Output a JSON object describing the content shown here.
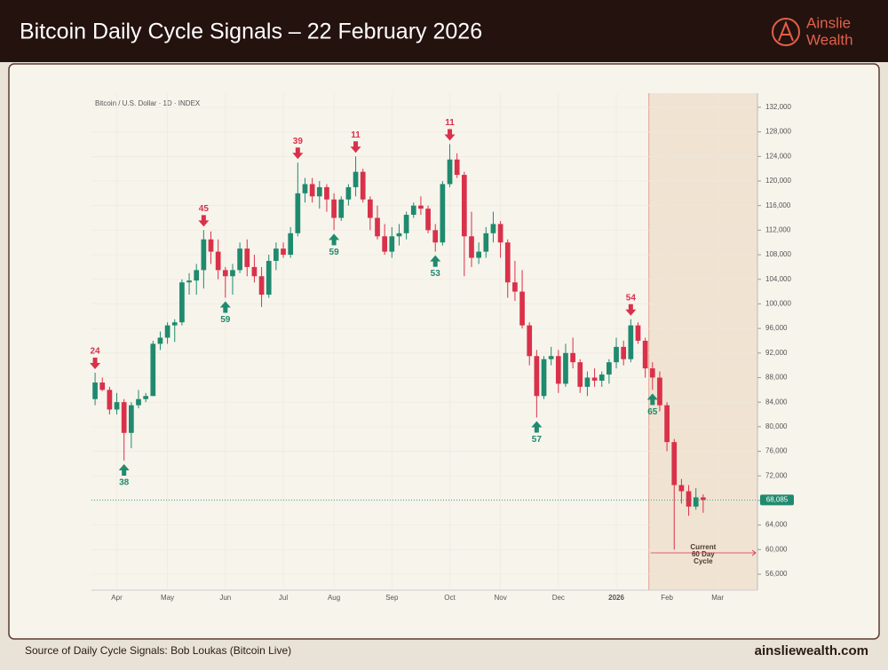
{
  "header": {
    "title": "Bitcoin Daily Cycle Signals – 22 February 2026",
    "logo": [
      "Ainslie",
      "Wealth"
    ]
  },
  "footer": {
    "source": "Source of Daily Cycle Signals: Bob Loukas (Bitcoin Live)",
    "website": "ainsliewealth.com"
  },
  "chart_data": {
    "type": "candlestick",
    "subtitle": "Bitcoin / U.S. Dollar · 1D · INDEX",
    "up_color": "#1f8a6e",
    "down_color": "#d9314a",
    "grid": true,
    "xlim": [
      -0.5,
      91.5
    ],
    "categories": [
      null,
      null,
      null,
      "Apr",
      null,
      null,
      null,
      null,
      null,
      null,
      "May",
      null,
      null,
      null,
      null,
      null,
      null,
      null,
      "Jun",
      null,
      null,
      null,
      null,
      null,
      null,
      null,
      "Jul",
      null,
      null,
      null,
      null,
      null,
      null,
      "Aug",
      null,
      null,
      null,
      null,
      null,
      null,
      null,
      "Sep",
      null,
      null,
      null,
      null,
      null,
      null,
      null,
      "Oct",
      null,
      null,
      null,
      null,
      null,
      null,
      "Nov",
      null,
      null,
      null,
      null,
      null,
      null,
      null,
      "Dec",
      null,
      null,
      null,
      null,
      null,
      null,
      null,
      "2026",
      null,
      null,
      null,
      null,
      null,
      null,
      "Feb",
      null,
      null,
      null,
      null,
      null,
      null,
      "Mar",
      null,
      null,
      null,
      null,
      null
    ],
    "open": [
      84500,
      87200,
      86000,
      82800,
      84000,
      79000,
      83500,
      84500,
      85000,
      93500,
      94500,
      96500,
      97000,
      103500,
      103800,
      105500,
      110500,
      108500,
      105500,
      104500,
      105500,
      109000,
      106000,
      104500,
      101500,
      107000,
      109000,
      108000,
      111500,
      118000,
      119500,
      117500,
      119000,
      117000,
      114000,
      117000,
      119000,
      121500,
      117000,
      114000,
      111000,
      108500,
      111000,
      111500,
      114500,
      116000,
      115500,
      112000,
      110000,
      119500,
      123500,
      121000,
      111000,
      107500,
      108500,
      111500,
      113000,
      110000,
      103500,
      102000,
      96500,
      91500,
      85000,
      91000,
      91500,
      87000,
      92000,
      90500,
      86500,
      88000,
      87500,
      88500,
      90500,
      93000,
      91000,
      96500,
      94000,
      89500,
      88000,
      83500,
      77500,
      70500,
      69500,
      67000,
      68500,
      null,
      null,
      null,
      null,
      null,
      null,
      null
    ],
    "high": [
      88800,
      88000,
      86500,
      85500,
      84500,
      84000,
      86000,
      85500,
      94000,
      95500,
      97000,
      97500,
      104000,
      105000,
      106500,
      112000,
      111800,
      110500,
      106000,
      106500,
      110000,
      110500,
      108000,
      106000,
      108000,
      110000,
      110000,
      112500,
      123000,
      120500,
      120500,
      120000,
      119500,
      118000,
      117500,
      119500,
      124000,
      122000,
      117500,
      116000,
      113000,
      112500,
      113000,
      115000,
      116500,
      117500,
      116000,
      113000,
      120000,
      126000,
      124500,
      121500,
      115000,
      110000,
      112500,
      115000,
      113500,
      110500,
      107000,
      105500,
      97000,
      92500,
      91500,
      93000,
      92500,
      93500,
      94500,
      91000,
      89000,
      89500,
      89000,
      91000,
      94500,
      94000,
      97500,
      97000,
      94500,
      90500,
      89000,
      84000,
      78000,
      71500,
      70500,
      70000,
      69000,
      null,
      null,
      null,
      null,
      null,
      null,
      null
    ],
    "low": [
      83500,
      85800,
      82000,
      82000,
      74500,
      76500,
      83000,
      84000,
      85000,
      92500,
      93500,
      93800,
      96500,
      101500,
      101500,
      102500,
      106500,
      104000,
      101000,
      101500,
      105000,
      104500,
      103500,
      99500,
      101000,
      105500,
      107500,
      107500,
      111000,
      116500,
      116500,
      115500,
      115000,
      112000,
      113500,
      116000,
      117500,
      116500,
      112000,
      110500,
      108000,
      107500,
      109500,
      110500,
      114000,
      114500,
      111500,
      108500,
      109500,
      119000,
      120500,
      104500,
      106000,
      106500,
      107500,
      110000,
      107500,
      101000,
      100500,
      96000,
      90000,
      81500,
      84500,
      90000,
      85500,
      86500,
      89500,
      85500,
      85000,
      86500,
      86500,
      87000,
      89500,
      90000,
      90500,
      93500,
      88000,
      86000,
      82500,
      76000,
      60000,
      67500,
      65500,
      66500,
      66000,
      null,
      null,
      null,
      null,
      null,
      null,
      null
    ],
    "close": [
      87200,
      86000,
      82800,
      84000,
      79000,
      83500,
      84500,
      85000,
      93500,
      94500,
      96500,
      97000,
      103500,
      103800,
      105500,
      110500,
      108500,
      105500,
      104500,
      105500,
      109000,
      106000,
      104500,
      101500,
      107000,
      109000,
      108000,
      111500,
      118000,
      119500,
      117500,
      119000,
      117000,
      114000,
      117000,
      119000,
      121500,
      117000,
      114000,
      111000,
      108500,
      111000,
      111500,
      114500,
      116000,
      115500,
      112000,
      110000,
      119500,
      123500,
      121000,
      111000,
      107500,
      108500,
      111500,
      113000,
      110000,
      103500,
      102000,
      96500,
      91500,
      85000,
      91000,
      91500,
      87000,
      92000,
      90500,
      86500,
      88000,
      87500,
      88500,
      90500,
      93000,
      91000,
      96500,
      94000,
      89500,
      88000,
      83500,
      77500,
      70500,
      69500,
      67000,
      68500,
      68085,
      null,
      null,
      null,
      null,
      null,
      null,
      null
    ],
    "signals": [
      {
        "candle": 0,
        "direction": "top",
        "count": 24
      },
      {
        "candle": 4,
        "direction": "bottom",
        "count": 38
      },
      {
        "candle": 15,
        "direction": "top",
        "count": 45
      },
      {
        "candle": 18,
        "direction": "bottom",
        "count": 59
      },
      {
        "candle": 28,
        "direction": "top",
        "count": 39
      },
      {
        "candle": 33,
        "direction": "bottom",
        "count": 59
      },
      {
        "candle": 36,
        "direction": "top",
        "count": 11
      },
      {
        "candle": 47,
        "direction": "bottom",
        "count": 53
      },
      {
        "candle": 49,
        "direction": "top",
        "count": 11
      },
      {
        "candle": 61,
        "direction": "bottom",
        "count": 57
      },
      {
        "candle": 74,
        "direction": "top",
        "count": 54
      },
      {
        "candle": 77,
        "direction": "bottom",
        "count": 65
      }
    ],
    "cycle": {
      "start_candle": 77,
      "text": [
        "Current",
        "60 Day",
        "Cycle"
      ]
    },
    "last_price": {
      "value": 68085,
      "label": "68,085"
    },
    "ylim": [
      53400,
      134300
    ],
    "yticks": [
      {
        "value": 56000,
        "label": "56,000"
      },
      {
        "value": 60000,
        "label": "60,000"
      },
      {
        "value": 64000,
        "label": "64,000"
      },
      {
        "value": 68000,
        "label": "68,000"
      },
      {
        "value": 72000,
        "label": "72,000"
      },
      {
        "value": 76000,
        "label": "76,000"
      },
      {
        "value": 80000,
        "label": "80,000"
      },
      {
        "value": 84000,
        "label": "84,000"
      },
      {
        "value": 88000,
        "label": "88,000"
      },
      {
        "value": 92000,
        "label": "92,000"
      },
      {
        "value": 96000,
        "label": "96,000"
      },
      {
        "value": 100000,
        "label": "100,000"
      },
      {
        "value": 104000,
        "label": "104,000"
      },
      {
        "value": 108000,
        "label": "108,000"
      },
      {
        "value": 112000,
        "label": "112,000"
      },
      {
        "value": 116000,
        "label": "116,000"
      },
      {
        "value": 120000,
        "label": "120,000"
      },
      {
        "value": 124000,
        "label": "124,000"
      },
      {
        "value": 128000,
        "label": "128,000"
      },
      {
        "value": 132000,
        "label": "132,000"
      }
    ]
  }
}
